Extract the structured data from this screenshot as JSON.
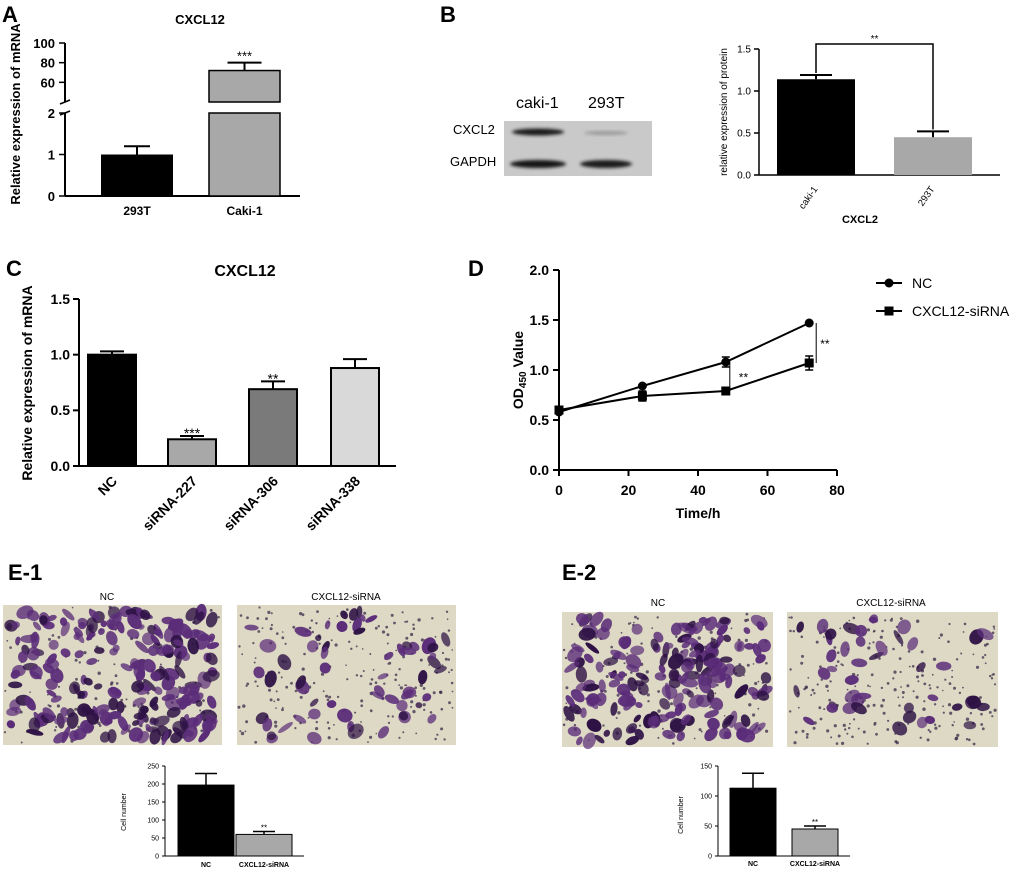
{
  "panels": {
    "A": "A",
    "B": "B",
    "C": "C",
    "D": "D",
    "E1": "E-1",
    "E2": "E-2"
  },
  "colors": {
    "black": "#000000",
    "gray_light": "#a8a8a8",
    "gray_dark": "#7a7a7a",
    "gray_pale": "#d9d9d9",
    "stain_bg": "#ddd9c4",
    "stain_cell": "#5b2d79"
  },
  "blot": {
    "lanes": [
      "caki-1",
      "293T"
    ],
    "rows": [
      "CXCL2",
      "GAPDH"
    ]
  },
  "micrographs": {
    "E1": {
      "left_label": "NC",
      "right_label": "CXCL12-siRNA"
    },
    "E2": {
      "left_label": "NC",
      "right_label": "CXCL12-siRNA"
    }
  },
  "chart_data": [
    {
      "id": "A",
      "type": "bar",
      "title": "CXCL12",
      "ylabel": "Relative expression of  mRNA",
      "xlabel": "",
      "categories": [
        "293T",
        "Caki-1"
      ],
      "values": [
        1.0,
        72
      ],
      "errors": [
        0.2,
        8
      ],
      "axis_break": true,
      "lower_range": [
        0,
        2
      ],
      "upper_range": [
        40,
        100
      ],
      "yticks_lower": [
        "0",
        "1",
        "2"
      ],
      "yticks_upper": [
        "60",
        "80",
        "100"
      ],
      "significance": [
        "",
        "***"
      ]
    },
    {
      "id": "B",
      "type": "bar",
      "title": "",
      "ylabel": "relative expression of protein",
      "xlabel": "CXCL2",
      "categories": [
        "caki-1",
        "293T"
      ],
      "values": [
        1.14,
        0.45
      ],
      "errors": [
        0.05,
        0.07
      ],
      "ylim": [
        0,
        1.5
      ],
      "yticks": [
        "0.0",
        "0.5",
        "1.0",
        "1.5"
      ],
      "bracket_label": "**"
    },
    {
      "id": "C",
      "type": "bar",
      "title": "CXCL12",
      "ylabel": "Relative expression of  mRNA",
      "xlabel": "",
      "categories": [
        "NC",
        "siRNA-227",
        "siRNA-306",
        "siRNA-338"
      ],
      "values": [
        1.0,
        0.24,
        0.69,
        0.88
      ],
      "errors": [
        0.03,
        0.03,
        0.07,
        0.08
      ],
      "ylim": [
        0,
        1.5
      ],
      "yticks": [
        "0.0",
        "0.5",
        "1.0",
        "1.5"
      ],
      "significance": [
        "",
        "***",
        "**",
        ""
      ]
    },
    {
      "id": "D",
      "type": "line",
      "title": "",
      "ylabel_main": "OD",
      "ylabel_sub": "450",
      "ylabel_tail": " Value",
      "xlabel": "Time/h",
      "x": [
        0,
        24,
        48,
        72
      ],
      "xlim": [
        0,
        80
      ],
      "ylim": [
        0,
        2.0
      ],
      "xticks": [
        "0",
        "20",
        "40",
        "60",
        "80"
      ],
      "yticks": [
        "0.0",
        "0.5",
        "1.0",
        "1.5",
        "2.0"
      ],
      "series": [
        {
          "name": "NC",
          "marker": "circle",
          "values": [
            0.58,
            0.84,
            1.08,
            1.47
          ],
          "errors": [
            0.02,
            0.02,
            0.05,
            0.02
          ]
        },
        {
          "name": "CXCL12-siRNA",
          "marker": "square",
          "values": [
            0.6,
            0.74,
            0.79,
            1.07
          ],
          "errors": [
            0.03,
            0.05,
            0.02,
            0.07
          ]
        }
      ],
      "annotations": [
        "**",
        "**"
      ]
    },
    {
      "id": "E1",
      "type": "bar",
      "title": "",
      "ylabel": "Cell number",
      "xlabel": "",
      "categories": [
        "NC",
        "CXCL12-siRNA"
      ],
      "values": [
        197,
        60
      ],
      "errors": [
        32,
        8
      ],
      "ylim": [
        0,
        250
      ],
      "yticks": [
        "0",
        "50",
        "100",
        "150",
        "200",
        "250"
      ],
      "significance": [
        "",
        "**"
      ]
    },
    {
      "id": "E2",
      "type": "bar",
      "title": "",
      "ylabel": "Cell number",
      "xlabel": "",
      "categories": [
        "NC",
        "CXCL12-siRNA"
      ],
      "values": [
        113,
        45
      ],
      "errors": [
        25,
        5
      ],
      "ylim": [
        0,
        150
      ],
      "yticks": [
        "0",
        "50",
        "100",
        "150"
      ],
      "significance": [
        "",
        "**"
      ]
    }
  ]
}
